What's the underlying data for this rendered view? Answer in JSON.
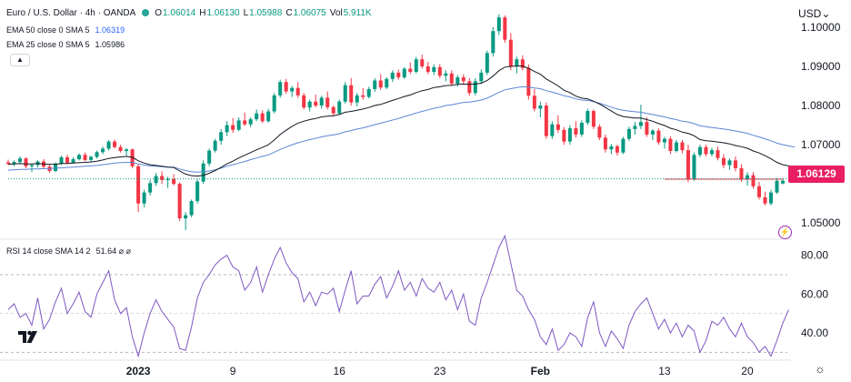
{
  "header": {
    "symbol": "Euro / U.S. Dollar · 4h · OANDA",
    "ohlc": [
      {
        "label": "O",
        "value": "1.06014"
      },
      {
        "label": "H",
        "value": "1.06130"
      },
      {
        "label": "L",
        "value": "1.05988"
      },
      {
        "label": "C",
        "value": "1.06075"
      },
      {
        "label": "Vol",
        "value": "5.911K"
      }
    ],
    "status_color": "#26a69a",
    "collapse_glyph": "▲"
  },
  "indicators": {
    "ema50": {
      "label": "EMA 50 close 0 SMA 5",
      "value": "1.06319",
      "color": "#5b85d6"
    },
    "ema25": {
      "label": "EMA 25 close 0 SMA 5",
      "value": "1.05986",
      "color": "#131722"
    },
    "rsi": {
      "label": "RSI 14 close SMA 14 2",
      "value": "51.64 ⌀ ⌀",
      "color": "#7e57c2"
    }
  },
  "price_axis": {
    "currency": "USD",
    "currency_glyph": "⌄",
    "ticks": [
      "1.10000",
      "1.09000",
      "1.08000",
      "1.07000",
      "1.05000"
    ],
    "last_price": "1.06129",
    "last_price_color": "#e91e63"
  },
  "rsi_axis": {
    "ticks": [
      "80.00",
      "60.00",
      "40.00"
    ]
  },
  "time_axis": {
    "ticks": [
      "2023",
      "9",
      "16",
      "23",
      "Feb",
      "13",
      "20"
    ]
  },
  "icons": {
    "bolt": "⚡",
    "settings": "☼",
    "logo": "tradingview-logo-icon"
  },
  "chart_data": {
    "type": "candlestick",
    "symbol": "EURUSD",
    "interval": "4h",
    "ylim": [
      1.0475,
      1.103
    ],
    "rsi_ylim": [
      25,
      85
    ],
    "rsi_bands": [
      70,
      50,
      30
    ],
    "up_color": "#089981",
    "down_color": "#f23645",
    "candles": [
      [
        1.0655,
        1.0662,
        1.0648,
        1.0651
      ],
      [
        1.0651,
        1.066,
        1.0645,
        1.0656
      ],
      [
        1.0656,
        1.067,
        1.065,
        1.0665
      ],
      [
        1.0665,
        1.0668,
        1.064,
        1.0645
      ],
      [
        1.0645,
        1.0652,
        1.063,
        1.0648
      ],
      [
        1.0648,
        1.066,
        1.0642,
        1.0657
      ],
      [
        1.0657,
        1.0663,
        1.064,
        1.0644
      ],
      [
        1.0644,
        1.065,
        1.0628,
        1.0633
      ],
      [
        1.0633,
        1.0655,
        1.063,
        1.0652
      ],
      [
        1.0652,
        1.0672,
        1.0648,
        1.0668
      ],
      [
        1.0668,
        1.0674,
        1.065,
        1.0654
      ],
      [
        1.0654,
        1.0668,
        1.0652,
        1.0663
      ],
      [
        1.0663,
        1.0678,
        1.066,
        1.0674
      ],
      [
        1.0674,
        1.068,
        1.0658,
        1.0661
      ],
      [
        1.0661,
        1.0672,
        1.0655,
        1.0669
      ],
      [
        1.0669,
        1.0685,
        1.0665,
        1.0681
      ],
      [
        1.0681,
        1.0695,
        1.0676,
        1.069
      ],
      [
        1.069,
        1.0712,
        1.0685,
        1.0708
      ],
      [
        1.0708,
        1.0713,
        1.069,
        1.0694
      ],
      [
        1.0694,
        1.07,
        1.068,
        1.0684
      ],
      [
        1.0684,
        1.0692,
        1.0672,
        1.0688
      ],
      [
        1.0688,
        1.069,
        1.064,
        1.0645
      ],
      [
        1.0645,
        1.065,
        1.0528,
        1.055
      ],
      [
        1.055,
        1.0585,
        1.054,
        1.0578
      ],
      [
        1.0578,
        1.061,
        1.057,
        1.0602
      ],
      [
        1.0602,
        1.0628,
        1.0595,
        1.062
      ],
      [
        1.062,
        1.0632,
        1.06,
        1.061
      ],
      [
        1.061,
        1.0618,
        1.059,
        1.0612
      ],
      [
        1.0612,
        1.0625,
        1.0596,
        1.06
      ],
      [
        1.06,
        1.0604,
        1.0505,
        1.0512
      ],
      [
        1.0512,
        1.0528,
        1.0482,
        1.052
      ],
      [
        1.052,
        1.056,
        1.0515,
        1.0556
      ],
      [
        1.0556,
        1.0612,
        1.055,
        1.0606
      ],
      [
        1.0606,
        1.066,
        1.06,
        1.0652
      ],
      [
        1.0652,
        1.069,
        1.0645,
        1.0685
      ],
      [
        1.0685,
        1.0715,
        1.068,
        1.071
      ],
      [
        1.071,
        1.074,
        1.07,
        1.0732
      ],
      [
        1.0732,
        1.076,
        1.0722,
        1.075
      ],
      [
        1.075,
        1.0768,
        1.073,
        1.0738
      ],
      [
        1.0738,
        1.077,
        1.0735,
        1.0762
      ],
      [
        1.0762,
        1.0782,
        1.0748,
        1.0752
      ],
      [
        1.0752,
        1.077,
        1.0745,
        1.0765
      ],
      [
        1.0765,
        1.079,
        1.076,
        1.078
      ],
      [
        1.078,
        1.0788,
        1.0755,
        1.076
      ],
      [
        1.076,
        1.0792,
        1.0756,
        1.0785
      ],
      [
        1.0785,
        1.0832,
        1.078,
        1.0826
      ],
      [
        1.0826,
        1.0866,
        1.082,
        1.086
      ],
      [
        1.086,
        1.0868,
        1.083,
        1.0836
      ],
      [
        1.0836,
        1.085,
        1.0822,
        1.0845
      ],
      [
        1.0845,
        1.086,
        1.082,
        1.0826
      ],
      [
        1.0826,
        1.0832,
        1.079,
        1.0795
      ],
      [
        1.0795,
        1.0815,
        1.0785,
        1.081
      ],
      [
        1.081,
        1.0828,
        1.0795,
        1.08
      ],
      [
        1.08,
        1.0825,
        1.0792,
        1.082
      ],
      [
        1.082,
        1.0836,
        1.079,
        1.0796
      ],
      [
        1.0796,
        1.08,
        1.0772,
        1.078
      ],
      [
        1.078,
        1.0815,
        1.0776,
        1.081
      ],
      [
        1.081,
        1.086,
        1.0805,
        1.0852
      ],
      [
        1.0852,
        1.087,
        1.08,
        1.0808
      ],
      [
        1.0808,
        1.0832,
        1.0798,
        1.0826
      ],
      [
        1.0826,
        1.0845,
        1.0815,
        1.0822
      ],
      [
        1.0822,
        1.0848,
        1.0818,
        1.0842
      ],
      [
        1.0842,
        1.087,
        1.0835,
        1.0864
      ],
      [
        1.0864,
        1.088,
        1.084,
        1.0846
      ],
      [
        1.0846,
        1.0872,
        1.0842,
        1.0868
      ],
      [
        1.0868,
        1.089,
        1.086,
        1.0884
      ],
      [
        1.0884,
        1.0892,
        1.0866,
        1.0872
      ],
      [
        1.0872,
        1.0898,
        1.0868,
        1.0894
      ],
      [
        1.0894,
        1.091,
        1.088,
        1.0886
      ],
      [
        1.0886,
        1.0924,
        1.0882,
        1.0918
      ],
      [
        1.0918,
        1.093,
        1.0895,
        1.09
      ],
      [
        1.09,
        1.0912,
        1.088,
        1.0886
      ],
      [
        1.0886,
        1.0905,
        1.0878,
        1.0898
      ],
      [
        1.0898,
        1.0906,
        1.087,
        1.0876
      ],
      [
        1.0876,
        1.089,
        1.0862,
        1.0882
      ],
      [
        1.0882,
        1.089,
        1.085,
        1.0856
      ],
      [
        1.0856,
        1.0878,
        1.0848,
        1.0872
      ],
      [
        1.0872,
        1.088,
        1.0855,
        1.0862
      ],
      [
        1.0862,
        1.087,
        1.0825,
        1.0832
      ],
      [
        1.0832,
        1.087,
        1.0826,
        1.0862
      ],
      [
        1.0862,
        1.0892,
        1.0855,
        1.0884
      ],
      [
        1.0884,
        1.094,
        1.0878,
        1.0934
      ],
      [
        1.0934,
        1.1,
        1.0925,
        1.099
      ],
      [
        1.099,
        1.1033,
        1.098,
        1.1025
      ],
      [
        1.1025,
        1.103,
        1.096,
        1.0968
      ],
      [
        1.0968,
        1.0985,
        1.089,
        1.09
      ],
      [
        1.09,
        1.0925,
        1.0882,
        1.0918
      ],
      [
        1.0918,
        1.0928,
        1.089,
        1.0896
      ],
      [
        1.0896,
        1.0905,
        1.0815,
        1.0825
      ],
      [
        1.0825,
        1.0842,
        1.0785,
        1.0792
      ],
      [
        1.0792,
        1.081,
        1.077,
        1.08
      ],
      [
        1.08,
        1.0808,
        1.0715,
        1.0722
      ],
      [
        1.0722,
        1.076,
        1.0715,
        1.0752
      ],
      [
        1.0752,
        1.0775,
        1.073,
        1.0738
      ],
      [
        1.0738,
        1.0745,
        1.07,
        1.0708
      ],
      [
        1.0708,
        1.075,
        1.07,
        1.0742
      ],
      [
        1.0742,
        1.076,
        1.0718,
        1.0726
      ],
      [
        1.0726,
        1.0762,
        1.072,
        1.0756
      ],
      [
        1.0756,
        1.0792,
        1.075,
        1.0786
      ],
      [
        1.0786,
        1.079,
        1.074,
        1.0746
      ],
      [
        1.0746,
        1.0752,
        1.0712,
        1.0718
      ],
      [
        1.0718,
        1.0726,
        1.068,
        1.0688
      ],
      [
        1.0688,
        1.0702,
        1.0676,
        1.0696
      ],
      [
        1.0696,
        1.07,
        1.0672,
        1.068
      ],
      [
        1.068,
        1.072,
        1.0676,
        1.0715
      ],
      [
        1.0715,
        1.0746,
        1.071,
        1.074
      ],
      [
        1.074,
        1.0758,
        1.0726,
        1.0748
      ],
      [
        1.0748,
        1.0802,
        1.074,
        1.0758
      ],
      [
        1.0758,
        1.077,
        1.072,
        1.0726
      ],
      [
        1.0726,
        1.074,
        1.0712,
        1.0736
      ],
      [
        1.0736,
        1.0742,
        1.07,
        1.0706
      ],
      [
        1.0706,
        1.072,
        1.069,
        1.0715
      ],
      [
        1.0715,
        1.0722,
        1.0676,
        1.0684
      ],
      [
        1.0684,
        1.0712,
        1.068,
        1.0706
      ],
      [
        1.0706,
        1.0712,
        1.0678,
        1.0686
      ],
      [
        1.0686,
        1.07,
        1.0604,
        1.0612
      ],
      [
        1.0612,
        1.068,
        1.0608,
        1.0674
      ],
      [
        1.0674,
        1.07,
        1.0668,
        1.0694
      ],
      [
        1.0694,
        1.07,
        1.067,
        1.0676
      ],
      [
        1.0676,
        1.0692,
        1.067,
        1.0686
      ],
      [
        1.0686,
        1.0695,
        1.066,
        1.0666
      ],
      [
        1.0666,
        1.0676,
        1.064,
        1.0648
      ],
      [
        1.0648,
        1.0665,
        1.0636,
        1.066
      ],
      [
        1.066,
        1.067,
        1.0632,
        1.064
      ],
      [
        1.064,
        1.065,
        1.0605,
        1.0612
      ],
      [
        1.0612,
        1.063,
        1.0596,
        1.0622
      ],
      [
        1.0622,
        1.063,
        1.0588,
        1.0594
      ],
      [
        1.0594,
        1.0605,
        1.056,
        1.0566
      ],
      [
        1.0566,
        1.058,
        1.0545,
        1.055
      ],
      [
        1.055,
        1.0585,
        1.0545,
        1.0578
      ],
      [
        1.0578,
        1.0615,
        1.0575,
        1.0608
      ],
      [
        1.0601,
        1.0613,
        1.0599,
        1.0608
      ]
    ],
    "ema25": [
      1.065,
      1.0651,
      1.0652,
      1.0651,
      1.0651,
      1.0652,
      1.0651,
      1.065,
      1.065,
      1.0652,
      1.0652,
      1.0653,
      1.0654,
      1.0655,
      1.0656,
      1.0658,
      1.0661,
      1.0665,
      1.0667,
      1.0669,
      1.067,
      1.0668,
      1.0659,
      1.0653,
      1.0649,
      1.0647,
      1.0645,
      1.0643,
      1.0642,
      1.0633,
      1.0625,
      1.0621,
      1.062,
      1.0622,
      1.0627,
      1.0634,
      1.0642,
      1.0651,
      1.0658,
      1.0666,
      1.0673,
      1.068,
      1.0687,
      1.0693,
      1.07,
      1.0712,
      1.0726,
      1.0737,
      1.0747,
      1.0755,
      1.076,
      1.0764,
      1.0767,
      1.0771,
      1.0773,
      1.0774,
      1.0777,
      1.0783,
      1.0785,
      1.0788,
      1.0791,
      1.0795,
      1.08,
      1.0803,
      1.0808,
      1.0813,
      1.0818,
      1.0823,
      1.0827,
      1.0833,
      1.0838,
      1.0841,
      1.0846,
      1.0848,
      1.0851,
      1.0852,
      1.0854,
      1.0855,
      1.0854,
      1.0855,
      1.0857,
      1.0864,
      1.0875,
      1.0889,
      1.0898,
      1.09,
      1.0901,
      1.0901,
      1.0895,
      1.0887,
      1.088,
      1.0868,
      1.0859,
      1.085,
      1.0839,
      1.0833,
      1.0824,
      1.0819,
      1.0817,
      1.0811,
      1.0804,
      1.0795,
      1.0786,
      1.0777,
      1.0772,
      1.077,
      1.0768,
      1.0768,
      1.0764,
      1.076,
      1.0754,
      1.0749,
      1.0742,
      1.0738,
      1.0732,
      1.0729,
      1.0723,
      1.0713,
      1.071,
      1.0709,
      1.0707,
      1.0705,
      1.0702,
      1.0698,
      1.0695,
      1.0691,
      1.0684,
      1.0679,
      1.0672,
      1.0664,
      1.0655,
      1.0649,
      1.0646,
      1.0643
    ],
    "ema50": [
      1.0635,
      1.0636,
      1.0637,
      1.0637,
      1.0638,
      1.0638,
      1.0639,
      1.0639,
      1.064,
      1.0641,
      1.0642,
      1.0643,
      1.0644,
      1.0645,
      1.0646,
      1.0647,
      1.0649,
      1.0651,
      1.0653,
      1.0654,
      1.0655,
      1.0655,
      1.0651,
      1.0648,
      1.0646,
      1.0645,
      1.0644,
      1.0643,
      1.0643,
      1.0638,
      1.0634,
      1.0631,
      1.063,
      1.0631,
      1.0633,
      1.0636,
      1.064,
      1.0645,
      1.0649,
      1.0653,
      1.0657,
      1.0662,
      1.0666,
      1.067,
      1.0674,
      1.0681,
      1.0688,
      1.0694,
      1.07,
      1.0705,
      1.0709,
      1.0713,
      1.0716,
      1.072,
      1.0723,
      1.0725,
      1.0728,
      1.0733,
      1.0736,
      1.074,
      1.0743,
      1.0747,
      1.0751,
      1.0755,
      1.0759,
      1.0763,
      1.0767,
      1.0772,
      1.0776,
      1.0781,
      1.0785,
      1.0789,
      1.0793,
      1.0796,
      1.08,
      1.0802,
      1.0805,
      1.0808,
      1.0809,
      1.0811,
      1.0814,
      1.0819,
      1.0826,
      1.0834,
      1.084,
      1.0843,
      1.0846,
      1.0848,
      1.0847,
      1.0845,
      1.0843,
      1.0838,
      1.0834,
      1.083,
      1.0825,
      1.0822,
      1.0817,
      1.0814,
      1.0813,
      1.081,
      1.0806,
      1.0801,
      1.0796,
      1.0791,
      1.0788,
      1.0786,
      1.0784,
      1.0783,
      1.078,
      1.0777,
      1.0774,
      1.0771,
      1.0767,
      1.0764,
      1.076,
      1.0758,
      1.0754,
      1.0748,
      1.0746,
      1.0744,
      1.0742,
      1.074,
      1.0738,
      1.0735,
      1.0732,
      1.0729,
      1.0724,
      1.072,
      1.0715,
      1.071,
      1.0704,
      1.07,
      1.0697,
      1.0694
    ],
    "rsi": [
      52,
      55,
      48,
      50,
      44,
      58,
      42,
      47,
      56,
      63,
      50,
      55,
      61,
      51,
      48,
      60,
      66,
      72,
      57,
      50,
      53,
      38,
      28,
      40,
      50,
      57,
      51,
      47,
      43,
      32,
      31,
      43,
      58,
      66,
      70,
      75,
      78,
      80,
      74,
      72,
      62,
      66,
      74,
      61,
      70,
      78,
      84,
      76,
      71,
      68,
      56,
      61,
      54,
      61,
      60,
      63,
      51,
      62,
      72,
      55,
      59,
      59,
      65,
      69,
      58,
      64,
      72,
      62,
      66,
      59,
      68,
      63,
      61,
      66,
      57,
      62,
      52,
      60,
      46,
      44,
      58,
      66,
      75,
      84,
      90,
      76,
      62,
      59,
      52,
      47,
      38,
      34,
      42,
      31,
      34,
      40,
      38,
      33,
      48,
      56,
      40,
      33,
      41,
      37,
      32,
      44,
      51,
      55,
      58,
      50,
      42,
      47,
      40,
      45,
      38,
      44,
      41,
      30,
      36,
      46,
      44,
      48,
      42,
      38,
      45,
      38,
      35,
      30,
      33,
      28,
      36,
      45,
      52
    ],
    "price_ticks": [
      1.1,
      1.09,
      1.08,
      1.07,
      1.05
    ],
    "rsi_ticks": [
      80,
      60,
      40
    ],
    "x_tick_candles": [
      22,
      38,
      56,
      73,
      90,
      111,
      125
    ],
    "last_price": 1.06129,
    "horizontal_level": 1.0612
  }
}
